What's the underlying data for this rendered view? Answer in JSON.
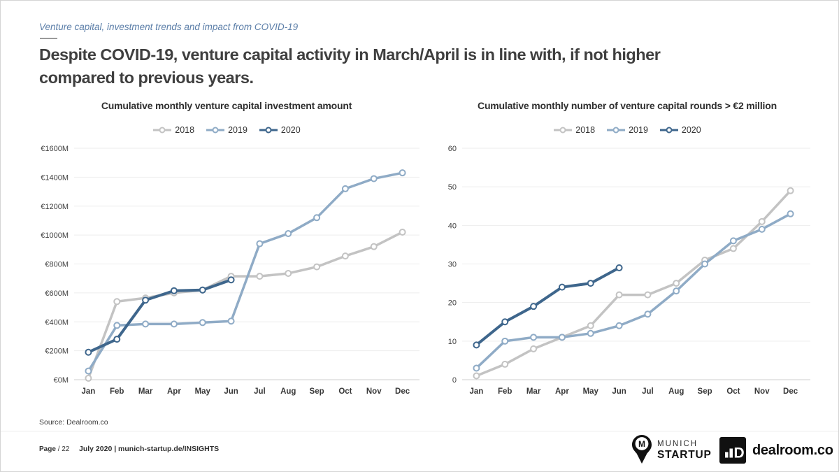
{
  "header": {
    "eyebrow": "Venture capital, investment trends and impact from COVID-19",
    "title_line1": "Despite COVID-19, venture capital activity in March/April is in line with, if not higher",
    "title_line2": "compared to previous years."
  },
  "colors": {
    "series_2018": "#c3c3c3",
    "series_2019": "#8fabc6",
    "series_2020": "#3e668c",
    "title_text": "#3f3f3f",
    "eyebrow_text": "#5b7ea8",
    "gridline": "#ededed"
  },
  "chart_data": [
    {
      "type": "line",
      "title": "Cumulative monthly venture capital investment amount",
      "categories": [
        "Jan",
        "Feb",
        "Mar",
        "Apr",
        "May",
        "Jun",
        "Jul",
        "Aug",
        "Sep",
        "Oct",
        "Nov",
        "Dec"
      ],
      "series": [
        {
          "name": "2018",
          "color": "#c3c3c3",
          "values": [
            10,
            540,
            565,
            600,
            620,
            715,
            715,
            735,
            780,
            855,
            920,
            1020
          ]
        },
        {
          "name": "2019",
          "color": "#8fabc6",
          "values": [
            60,
            375,
            385,
            385,
            395,
            405,
            940,
            1010,
            1120,
            1320,
            1390,
            1430
          ]
        },
        {
          "name": "2020",
          "color": "#3e668c",
          "values": [
            190,
            280,
            550,
            615,
            620,
            690
          ]
        }
      ],
      "ylabel": "",
      "xlabel": "",
      "ylim": [
        0,
        1600
      ],
      "ystep": 200,
      "ytick_labels": [
        "€0M",
        "€200M",
        "€400M",
        "€600M",
        "€800M",
        "€1000M",
        "€1200M",
        "€1400M",
        "€1600M"
      ],
      "grid": true,
      "legend_position": "top"
    },
    {
      "type": "line",
      "title": "Cumulative monthly number of venture capital rounds > €2 million",
      "categories": [
        "Jan",
        "Feb",
        "Mar",
        "Apr",
        "May",
        "Jun",
        "Jul",
        "Aug",
        "Sep",
        "Oct",
        "Nov",
        "Dec"
      ],
      "series": [
        {
          "name": "2018",
          "color": "#c3c3c3",
          "values": [
            1,
            4,
            8,
            11,
            14,
            22,
            22,
            25,
            31,
            34,
            41,
            49
          ]
        },
        {
          "name": "2019",
          "color": "#8fabc6",
          "values": [
            3,
            10,
            11,
            11,
            12,
            14,
            17,
            23,
            30,
            36,
            39,
            43
          ]
        },
        {
          "name": "2020",
          "color": "#3e668c",
          "values": [
            9,
            15,
            19,
            24,
            25,
            29
          ]
        }
      ],
      "ylabel": "",
      "xlabel": "",
      "ylim": [
        0,
        60
      ],
      "ystep": 10,
      "ytick_labels": [
        "0",
        "10",
        "20",
        "30",
        "40",
        "50",
        "60"
      ],
      "grid": true,
      "legend_position": "top"
    }
  ],
  "footer": {
    "source": "Source: Dealroom.co",
    "page_word": "Page",
    "page_suffix": "/ 22",
    "date_line": "July 2020 | munich-startup.de/INSIGHTS",
    "munich_logo": {
      "pin_letter": "M",
      "line1": "MUNICH",
      "line2": "STARTUP"
    },
    "dealroom_logo": {
      "glyph_letter": "D",
      "label": "dealroom.co"
    }
  }
}
